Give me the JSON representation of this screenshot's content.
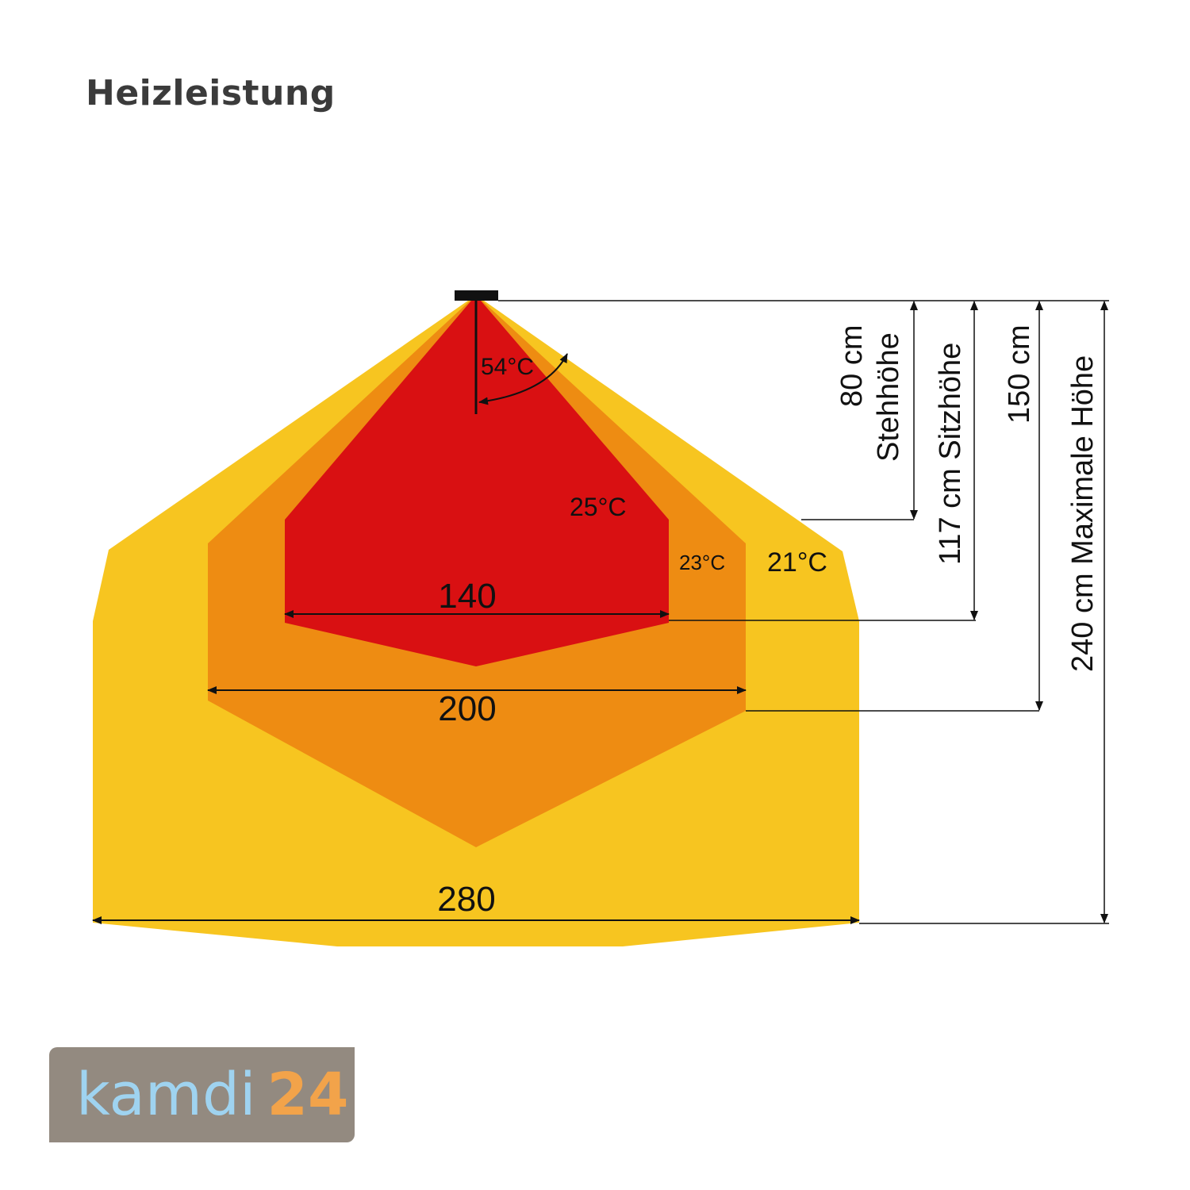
{
  "title": "Heizleistung",
  "colors": {
    "zone_21": "#f7c520",
    "zone_23": "#ee8c12",
    "zone_25": "#d91012",
    "heater": "#111111",
    "logo_bg": "#938a80",
    "logo_text": "#9fd3f0",
    "logo_number": "#f2a34a"
  },
  "zones": {
    "outer_temp": "21°C",
    "middle_temp": "23°C",
    "inner_temp": "25°C",
    "angle": "54°C"
  },
  "widths": {
    "inner": "140",
    "middle": "200",
    "outer": "280"
  },
  "heights": {
    "h80": "80 cm",
    "h80_caption": "Stehhöhe",
    "h117": "117 cm Sitzhöhe",
    "h150": "150 cm",
    "h240": "240 cm Maximale Höhe"
  },
  "logo": {
    "name": "kamdi",
    "number": "24"
  }
}
